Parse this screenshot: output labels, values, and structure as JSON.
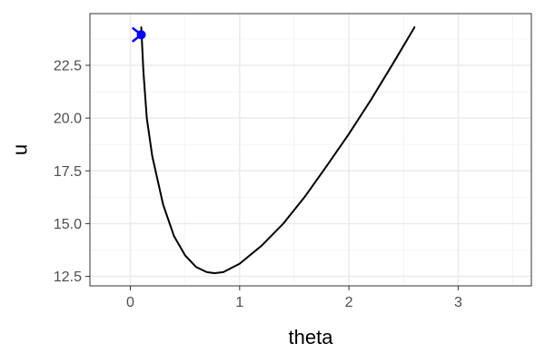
{
  "chart_data": {
    "type": "line",
    "title": "",
    "xlabel": "theta",
    "ylabel": "u",
    "xlim": [
      -0.37,
      3.67
    ],
    "ylim": [
      12.05,
      24.95
    ],
    "x_ticks": [
      0,
      1,
      2,
      3
    ],
    "y_ticks": [
      12.5,
      15.0,
      17.5,
      20.0,
      22.5
    ],
    "x_tick_labels": [
      "0",
      "1",
      "2",
      "3"
    ],
    "y_tick_labels": [
      "12.5",
      "15.0",
      "17.5",
      "20.0",
      "22.5"
    ],
    "grid": true,
    "theme": "bw",
    "series": [
      {
        "color": "#000000",
        "x": [
          0.1,
          0.12,
          0.15,
          0.2,
          0.3,
          0.4,
          0.5,
          0.6,
          0.7,
          0.77,
          0.85,
          1.0,
          1.2,
          1.4,
          1.6,
          1.8,
          2.0,
          2.2,
          2.4,
          2.6
        ],
        "y": [
          24.3,
          22.2,
          20.0,
          18.2,
          15.9,
          14.4,
          13.5,
          12.95,
          12.7,
          12.65,
          12.7,
          13.1,
          13.95,
          15.0,
          16.3,
          17.75,
          19.25,
          20.85,
          22.55,
          24.3
        ]
      }
    ],
    "annotations": [
      {
        "type": "point",
        "x": 0.1,
        "y": 23.95,
        "color": "#0000ff",
        "marker": "filled-circle"
      },
      {
        "type": "arrow-head",
        "x": 0.1,
        "y": 23.95,
        "color": "#0000ff"
      }
    ]
  }
}
